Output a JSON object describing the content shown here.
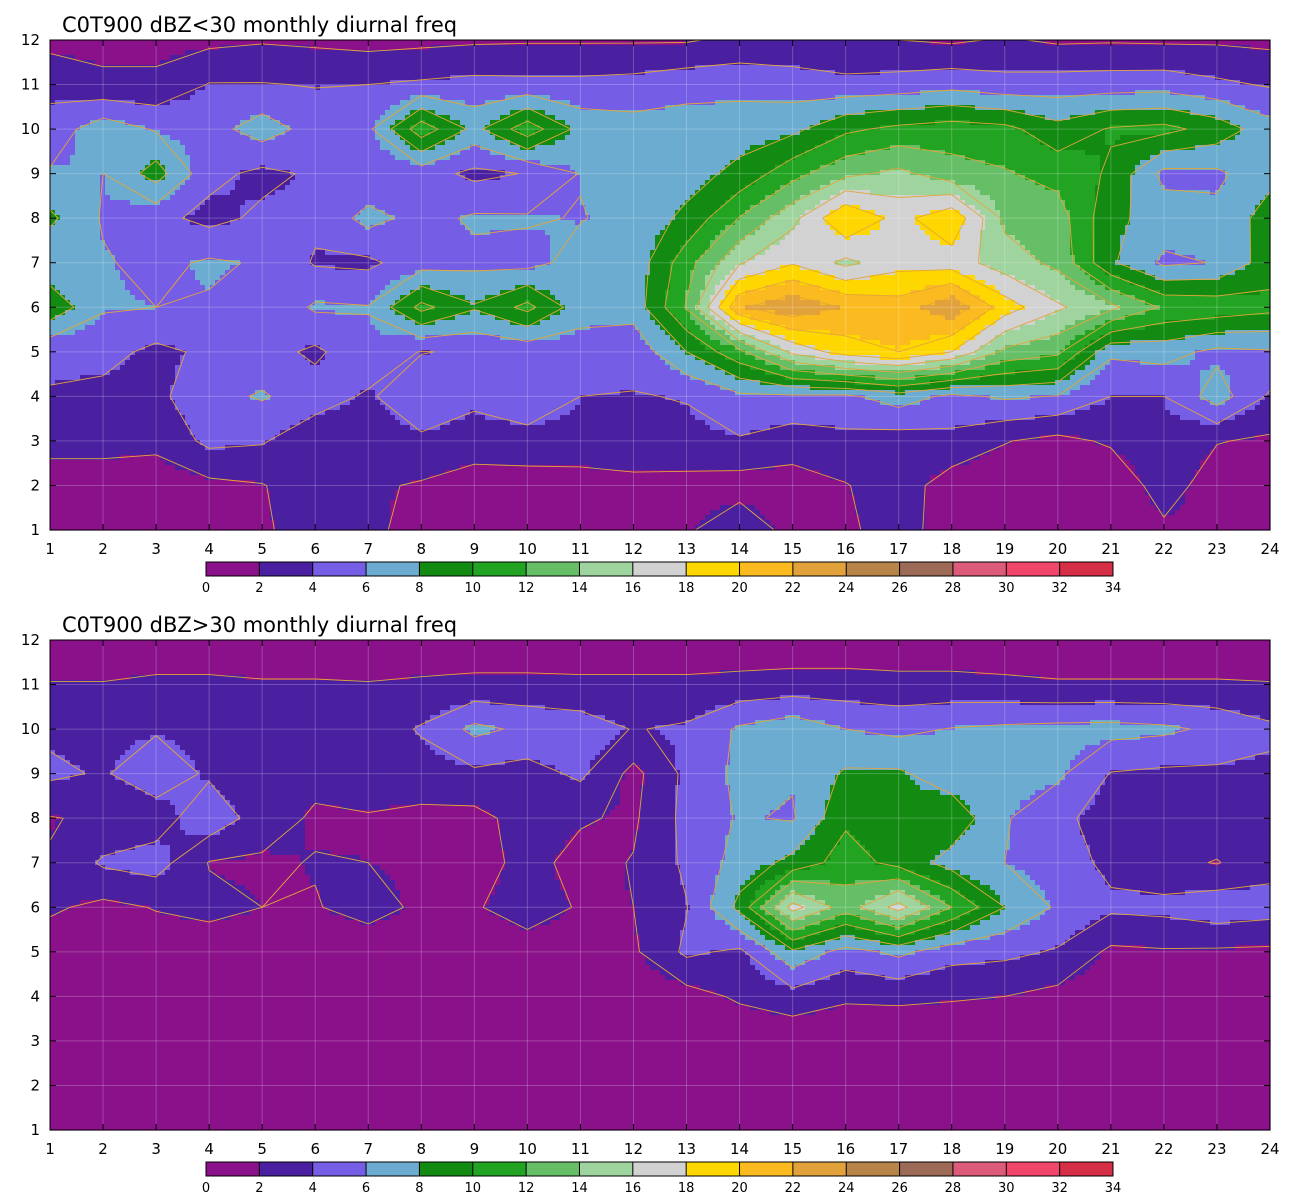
{
  "chart_data": [
    {
      "type": "contour",
      "title": "C0T900 dBZ<30 monthly diurnal freq",
      "x_ticks": [
        1,
        2,
        3,
        4,
        5,
        6,
        7,
        8,
        9,
        10,
        11,
        12,
        13,
        14,
        15,
        16,
        17,
        18,
        19,
        20,
        21,
        22,
        23,
        24
      ],
      "y_ticks": [
        1,
        2,
        3,
        4,
        5,
        6,
        7,
        8,
        9,
        10,
        11,
        12
      ],
      "xlim": [
        1,
        24
      ],
      "ylim": [
        1,
        12
      ],
      "levels": [
        0,
        2,
        4,
        6,
        8,
        10,
        12,
        14,
        16,
        18,
        20,
        22,
        24,
        26,
        28,
        30,
        32,
        34
      ],
      "colorbar_labels": [
        "0",
        "2",
        "4",
        "6",
        "8",
        "10",
        "12",
        "14",
        "16",
        "18",
        "20",
        "22",
        "24",
        "26",
        "28",
        "30",
        "32",
        "34"
      ],
      "grid": true,
      "z": [
        [
          1.2,
          1.0,
          1.3,
          1.6,
          1.7,
          3.0,
          2.6,
          1.0,
          0.9,
          0.9,
          1.2,
          1.5,
          1.7,
          3.5,
          1.2,
          1.6,
          3.0,
          0.8,
          0.8,
          1.0,
          0.6,
          1.6,
          1.6,
          1.3
        ],
        [
          0.8,
          0.8,
          0.9,
          1.5,
          1.9,
          3.1,
          2.3,
          1.8,
          0.9,
          1.3,
          1.0,
          1.4,
          1.3,
          1.1,
          1.2,
          1.9,
          3.0,
          1.0,
          0.8,
          1.4,
          0.4,
          3.0,
          0.9,
          1.1
        ],
        [
          2.8,
          2.8,
          2.5,
          4.5,
          4.2,
          2.6,
          3.1,
          3.6,
          3.2,
          2.9,
          3.4,
          3.4,
          3.5,
          3.8,
          2.9,
          3.4,
          3.0,
          3.4,
          2.1,
          1.4,
          2.3,
          3.5,
          2.1,
          1.7
        ],
        [
          3.9,
          3.4,
          3.5,
          5.4,
          6.2,
          5.0,
          3.7,
          5.6,
          4.4,
          6.0,
          4.0,
          3.9,
          4.1,
          5.6,
          5.7,
          5.6,
          7.0,
          5.5,
          6.3,
          5.9,
          4.0,
          4.0,
          7.0,
          3.7
        ],
        [
          4.3,
          4.7,
          3.5,
          4.4,
          4.8,
          3.6,
          5.5,
          3.9,
          4.3,
          4.6,
          5.1,
          4.7,
          8.0,
          11.5,
          16.5,
          19.0,
          20.0,
          18.0,
          13.5,
          12.5,
          6.4,
          6.8,
          5.5,
          5.8
        ],
        [
          9.5,
          6.2,
          6.0,
          5.8,
          4.3,
          6.3,
          6.1,
          10.6,
          8.2,
          10.6,
          6.8,
          6.8,
          12.2,
          21.8,
          23.5,
          21.8,
          20.9,
          23.5,
          19.0,
          16.3,
          14.5,
          11.7,
          11.3,
          10.6
        ],
        [
          6.4,
          6.2,
          5.4,
          6.3,
          5.8,
          3.8,
          3.6,
          5.1,
          5.5,
          5.3,
          6.8,
          6.7,
          11.2,
          15.8,
          17.8,
          15.5,
          17.3,
          17.0,
          15.0,
          13.5,
          8.3,
          5.6,
          6.1,
          9.1
        ],
        [
          8.4,
          5.8,
          4.6,
          3.4,
          4.4,
          4.4,
          6.7,
          5.3,
          6.3,
          6.2,
          5.9,
          6.6,
          8.5,
          12.1,
          15.4,
          20.0,
          17.3,
          19.6,
          13.5,
          13.0,
          8.5,
          7.1,
          6.5,
          8.9
        ],
        [
          6.2,
          6.0,
          8.9,
          4.6,
          3.5,
          4.3,
          4.3,
          4.9,
          3.5,
          4.1,
          6.1,
          7.6,
          7.1,
          8.6,
          11.3,
          13.5,
          14.5,
          12.8,
          12.2,
          11.3,
          9.7,
          5.4,
          5.6,
          7.4
        ],
        [
          4.8,
          7.2,
          5.8,
          5.2,
          7.0,
          5.2,
          5.6,
          11.2,
          7.4,
          11.2,
          7.3,
          6.8,
          6.9,
          7.0,
          7.5,
          9.6,
          10.5,
          11.0,
          10.6,
          8.7,
          10.2,
          10.6,
          9.2,
          6.8
        ],
        [
          3.4,
          2.4,
          2.4,
          4.1,
          4.1,
          3.9,
          4.0,
          4.3,
          4.6,
          4.5,
          4.5,
          4.7,
          5.3,
          5.4,
          5.0,
          4.6,
          4.8,
          5.3,
          4.7,
          4.9,
          5.0,
          5.1,
          4.4,
          3.8
        ],
        [
          1.4,
          1.4,
          1.4,
          1.5,
          1.8,
          1.6,
          1.3,
          1.5,
          1.7,
          1.8,
          1.8,
          1.8,
          1.8,
          2.5,
          2.5,
          2.1,
          2.0,
          1.7,
          2.2,
          1.7,
          1.8,
          1.7,
          1.7,
          1.5
        ]
      ]
    },
    {
      "type": "contour",
      "title": "C0T900 dBZ>30 monthly diurnal freq",
      "x_ticks": [
        1,
        2,
        3,
        4,
        5,
        6,
        7,
        8,
        9,
        10,
        11,
        12,
        13,
        14,
        15,
        16,
        17,
        18,
        19,
        20,
        21,
        22,
        23,
        24
      ],
      "y_ticks": [
        1,
        2,
        3,
        4,
        5,
        6,
        7,
        8,
        9,
        10,
        11,
        12
      ],
      "xlim": [
        1,
        24
      ],
      "ylim": [
        1,
        12
      ],
      "levels": [
        0,
        2,
        4,
        6,
        8,
        10,
        12,
        14,
        16,
        18,
        20,
        22,
        24,
        26,
        28,
        30,
        32,
        34
      ],
      "colorbar_labels": [
        "0",
        "2",
        "4",
        "6",
        "8",
        "10",
        "12",
        "14",
        "16",
        "18",
        "20",
        "22",
        "24",
        "26",
        "28",
        "30",
        "32",
        "34"
      ],
      "grid": true,
      "z": [
        [
          0.3,
          0.3,
          0.3,
          0.3,
          0.3,
          0.3,
          0.3,
          0.3,
          0.3,
          0.3,
          0.3,
          0.3,
          0.3,
          0.3,
          0.3,
          0.3,
          0.3,
          0.3,
          0.3,
          0.3,
          0.3,
          0.3,
          0.3,
          0.3
        ],
        [
          0.3,
          0.3,
          0.3,
          0.3,
          0.3,
          0.3,
          0.3,
          0.3,
          0.3,
          0.3,
          0.3,
          0.3,
          0.3,
          0.3,
          0.3,
          0.3,
          0.3,
          0.3,
          0.3,
          0.3,
          0.3,
          0.3,
          0.3,
          0.3
        ],
        [
          0.4,
          0.4,
          0.4,
          0.4,
          0.4,
          0.4,
          0.4,
          0.4,
          0.4,
          0.4,
          0.4,
          0.4,
          0.4,
          0.5,
          0.5,
          0.5,
          0.5,
          0.5,
          0.5,
          0.5,
          0.4,
          0.4,
          0.4,
          0.4
        ],
        [
          0.6,
          2.0,
          0.6,
          0.6,
          0.6,
          0.6,
          0.6,
          0.6,
          0.6,
          0.6,
          0.6,
          0.6,
          1.2,
          2.3,
          3.2,
          2.3,
          2.4,
          2.2,
          2.0,
          1.4,
          0.8,
          0.6,
          0.6,
          0.6
        ],
        [
          0.9,
          0.9,
          1.0,
          1.0,
          1.0,
          1.1,
          1.0,
          1.6,
          1.3,
          1.5,
          1.5,
          1.7,
          4.4,
          3.6,
          7.6,
          5.2,
          6.5,
          4.8,
          4.5,
          3.8,
          1.6,
          1.8,
          1.7,
          1.6
        ],
        [
          2.3,
          1.5,
          2.1,
          2.5,
          2.0,
          1.9,
          2.6,
          1.7,
          1.9,
          2.5,
          1.9,
          2.0,
          3.9,
          8.6,
          16.8,
          13.0,
          16.8,
          12.0,
          8.0,
          5.7,
          4.4,
          4.6,
          5.3,
          4.9
        ],
        [
          2.1,
          4.3,
          4.9,
          1.9,
          1.7,
          2.1,
          2.0,
          1.7,
          1.2,
          2.6,
          1.4,
          2.1,
          4.4,
          6.8,
          8.6,
          11.0,
          9.3,
          7.2,
          6.0,
          5.0,
          3.5,
          2.5,
          1.9,
          3.2
        ],
        [
          1.9,
          2.3,
          3.0,
          5.4,
          3.0,
          1.7,
          1.9,
          1.5,
          1.4,
          2.8,
          2.2,
          1.7,
          4.6,
          6.2,
          5.8,
          9.6,
          8.3,
          9.4,
          6.2,
          4.5,
          3.1,
          2.2,
          3.1,
          3.4
        ],
        [
          4.4,
          3.8,
          5.2,
          3.7,
          2.1,
          2.6,
          2.7,
          3.1,
          3.6,
          3.2,
          4.4,
          1.4,
          4.5,
          6.5,
          6.2,
          8.3,
          8.3,
          6.8,
          6.8,
          6.4,
          3.9,
          3.6,
          3.6,
          3.6
        ],
        [
          3.6,
          3.5,
          3.8,
          3.5,
          3.2,
          3.0,
          2.9,
          4.2,
          6.5,
          5.6,
          5.1,
          3.9,
          4.3,
          6.3,
          7.3,
          6.0,
          5.5,
          6.1,
          6.4,
          6.6,
          6.7,
          6.4,
          5.6,
          4.4
        ],
        [
          2.1,
          2.1,
          2.4,
          2.4,
          2.2,
          2.2,
          2.1,
          2.3,
          2.5,
          2.5,
          2.4,
          2.4,
          2.4,
          2.6,
          2.8,
          2.8,
          2.6,
          2.6,
          2.4,
          2.2,
          2.2,
          2.2,
          2.2,
          2.1
        ],
        [
          0.6,
          0.6,
          0.6,
          0.6,
          0.6,
          0.6,
          0.6,
          0.6,
          0.6,
          0.6,
          0.6,
          0.6,
          0.6,
          0.6,
          0.6,
          0.6,
          0.6,
          0.6,
          0.6,
          0.6,
          0.6,
          0.6,
          0.6,
          0.6
        ]
      ]
    }
  ],
  "colors": [
    "#8a1189",
    "#4a20a0",
    "#765de5",
    "#6cacd0",
    "#138b13",
    "#22a322",
    "#66bf66",
    "#9fd49f",
    "#d2d2d2",
    "#ffd700",
    "#fbbb20",
    "#e1a23c",
    "#b8844a",
    "#9c6a56",
    "#dd5b7a",
    "#f0466c",
    "#d52e47"
  ]
}
